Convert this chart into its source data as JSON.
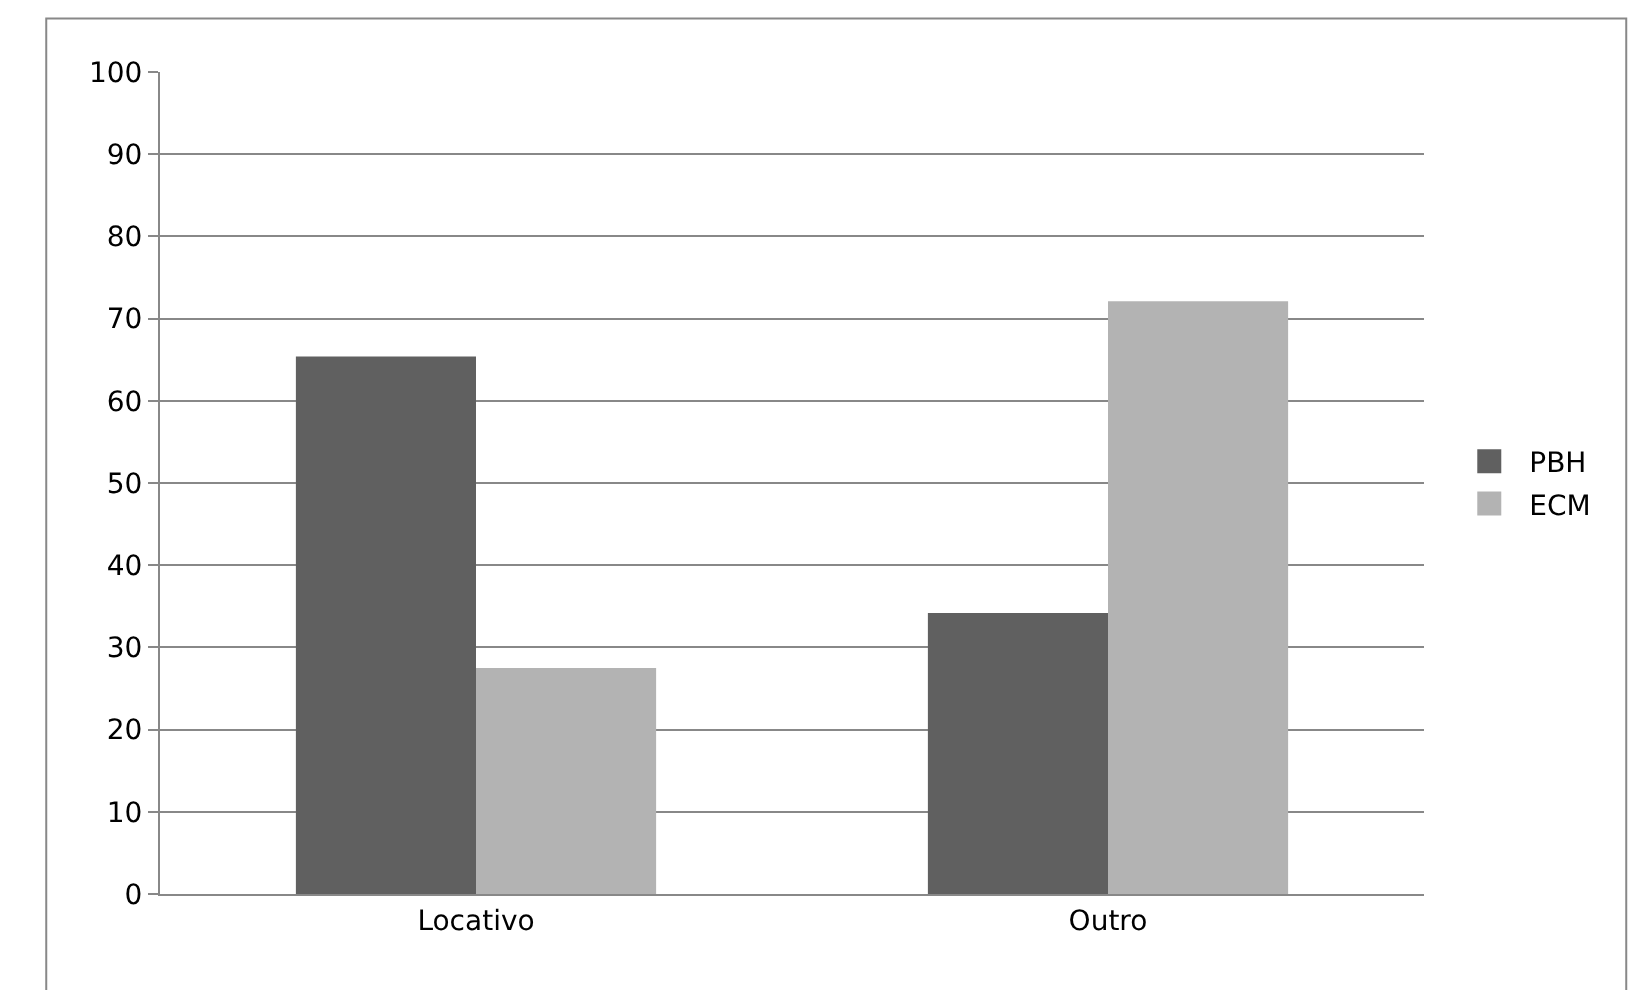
{
  "chart_data": {
    "type": "bar",
    "categories": [
      "Locativo",
      "Outro"
    ],
    "series": [
      {
        "name": "PBH",
        "color": "#606060",
        "values": [
          65.4,
          34.2
        ]
      },
      {
        "name": "ECM",
        "color": "#b3b3b3",
        "values": [
          27.5,
          72.1
        ]
      }
    ],
    "ylim": [
      0,
      100
    ],
    "yticks": [
      0,
      10,
      20,
      30,
      40,
      50,
      60,
      70,
      80,
      90,
      100
    ],
    "grid": "y",
    "legend": "right"
  }
}
